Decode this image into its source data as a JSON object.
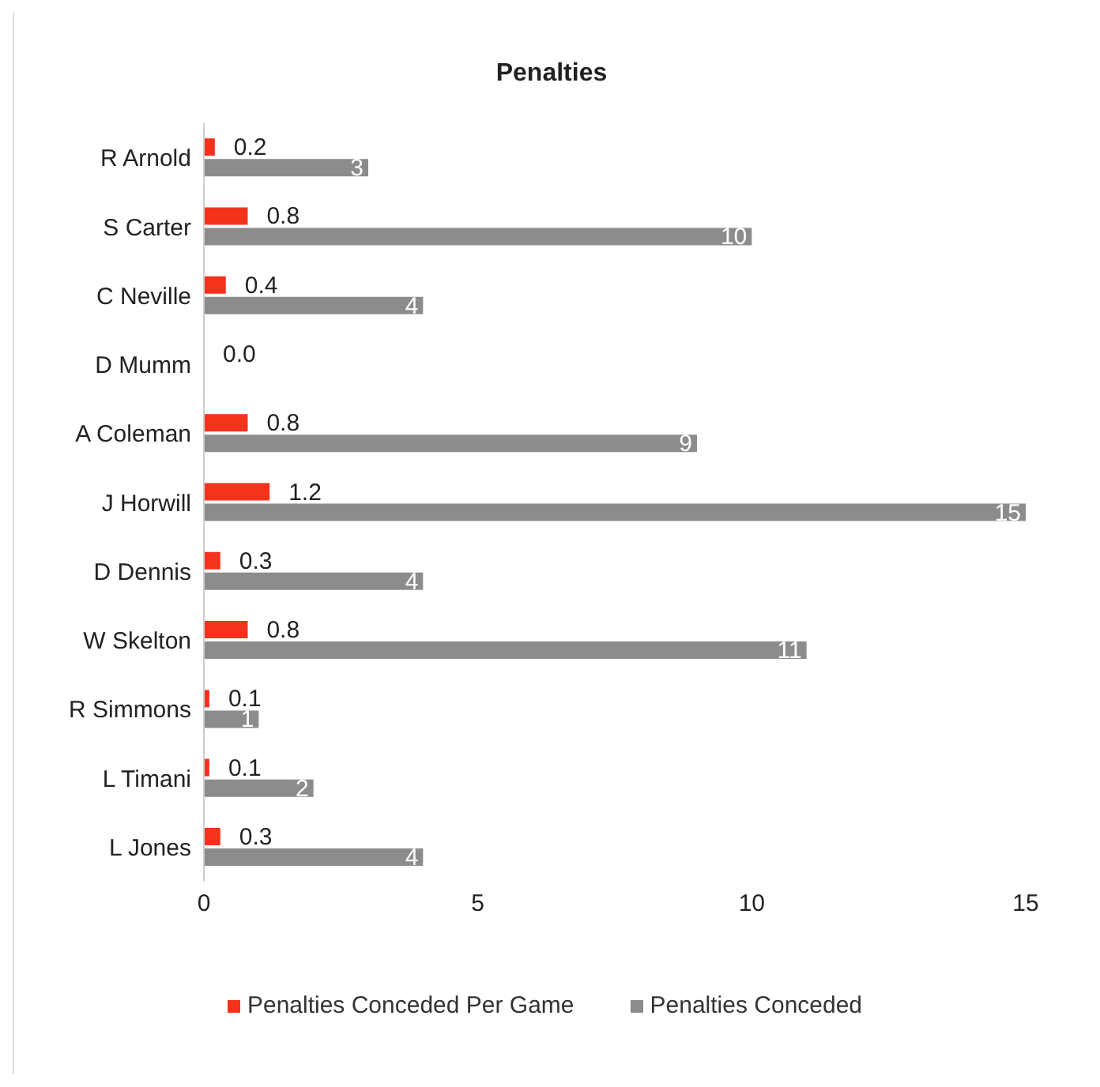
{
  "chart_data": {
    "type": "bar",
    "title": "Penalties",
    "orientation": "horizontal",
    "categories": [
      "R Arnold",
      "S Carter",
      "C Neville",
      "D Mumm",
      "A Coleman",
      "J Horwill",
      "D Dennis",
      "W Skelton",
      "R Simmons",
      "L Timani",
      "L Jones"
    ],
    "series": [
      {
        "name": "Penalties Conceded Per Game",
        "color": "#f5321c",
        "values": [
          0.2,
          0.8,
          0.4,
          0.0,
          0.8,
          1.2,
          0.3,
          0.8,
          0.1,
          0.1,
          0.3
        ],
        "value_labels": [
          "0.2",
          "0.8",
          "0.4",
          "0.0",
          "0.8",
          "1.2",
          "0.3",
          "0.8",
          "0.1",
          "0.1",
          "0.3"
        ]
      },
      {
        "name": "Penalties Conceded",
        "color": "#8c8c8c",
        "values": [
          3,
          10,
          4,
          0,
          9,
          15,
          4,
          11,
          1,
          2,
          4
        ],
        "value_labels": [
          "3",
          "10",
          "4",
          null,
          "9",
          "15",
          "4",
          "11",
          "1",
          "2",
          "4"
        ]
      }
    ],
    "xlim": [
      0,
      15
    ],
    "xticks": [
      0,
      5,
      10,
      15
    ],
    "grid": false,
    "legend": "bottom"
  }
}
